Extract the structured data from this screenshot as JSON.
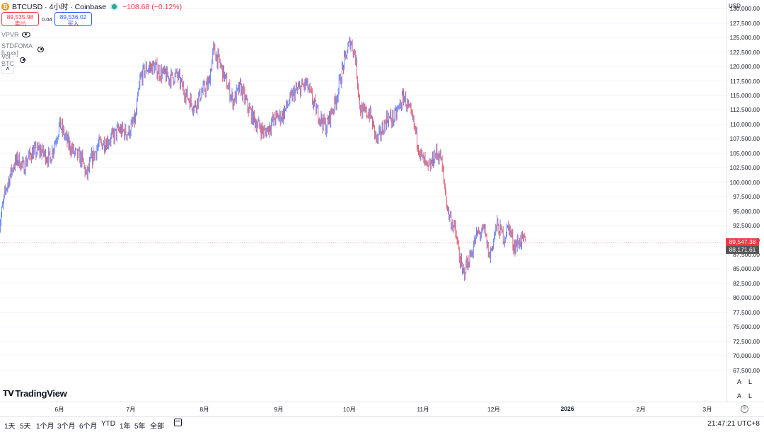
{
  "legend": {
    "symbol": "BTCUSD · 4小时 · Coinbase",
    "change": "−108.68 (−0.12%)",
    "sell_price": "89,535.98",
    "sell_label": "卖出",
    "spread": "0.04",
    "buy_price": "89,536.02",
    "buy_label": "买入",
    "indicators": [
      "VPVR",
      "STDFOMA [Loxx]",
      "Vol · BTC"
    ],
    "collapse_icon": "chevron-up-icon"
  },
  "price_axis": {
    "currency": "USD",
    "tags": {
      "last_price": "89,547.38",
      "last_color": "#f23645",
      "other_price": "88,171.61",
      "other_color": "#555555"
    }
  },
  "branding": {
    "logo_text": "TradingView"
  },
  "auto_log": {
    "a": "A",
    "l": "L"
  },
  "bottom_bar": {
    "ranges": [
      "1天",
      "5天",
      "1个月",
      "3个月",
      "6个月",
      "YTD",
      "1年",
      "5年",
      "全部"
    ],
    "clock": "21:47:21 UTC+8"
  },
  "colors": {
    "up": "#5b7cf5",
    "down": "#e0546a",
    "grid": "#f0f3fa"
  },
  "chart_data": {
    "type": "line",
    "title": "BTCUSD · 4小时 · Coinbase",
    "x_ticks": [
      "6月",
      "7月",
      "8月",
      "9月",
      "10月",
      "11月",
      "12月",
      "2026",
      "2月",
      "3月"
    ],
    "y_ticks": [
      "130,000.00",
      "127,500.00",
      "125,000.00",
      "122,500.00",
      "120,000.00",
      "117,500.00",
      "115,000.00",
      "112,500.00",
      "110,000.00",
      "107,500.00",
      "105,000.00",
      "102,500.00",
      "100,000.00",
      "97,500.00",
      "95,000.00",
      "92,500.00",
      "90,000.00",
      "87,500.00",
      "85,000.00",
      "82,500.00",
      "80,000.00",
      "77,500.00",
      "75,000.00",
      "72,500.00",
      "70,000.00",
      "67,500.00"
    ],
    "ylim": [
      65500,
      131500
    ],
    "series": [
      {
        "x": [
          "2025-05-15",
          "2025-05-18",
          "2025-05-21",
          "2025-05-23",
          "2025-05-25",
          "2025-05-28",
          "2025-06-01",
          "2025-06-05",
          "2025-06-09",
          "2025-06-12",
          "2025-06-15",
          "2025-06-18",
          "2025-06-20",
          "2025-06-22",
          "2025-06-25",
          "2025-06-28",
          "2025-07-01",
          "2025-07-03",
          "2025-07-07",
          "2025-07-10",
          "2025-07-12",
          "2025-07-14",
          "2025-07-17",
          "2025-07-20",
          "2025-07-24",
          "2025-07-27",
          "2025-07-31",
          "2025-08-03",
          "2025-08-06",
          "2025-08-09",
          "2025-08-11",
          "2025-08-14",
          "2025-08-16",
          "2025-08-19",
          "2025-08-22",
          "2025-08-25",
          "2025-08-28",
          "2025-09-01",
          "2025-09-05",
          "2025-09-08",
          "2025-09-13",
          "2025-09-18",
          "2025-09-22",
          "2025-09-26",
          "2025-09-30",
          "2025-10-03",
          "2025-10-06",
          "2025-10-08",
          "2025-10-10",
          "2025-10-11",
          "2025-10-14",
          "2025-10-17",
          "2025-10-21",
          "2025-10-24",
          "2025-10-28",
          "2025-11-01",
          "2025-11-04",
          "2025-11-07",
          "2025-11-10",
          "2025-11-12",
          "2025-11-15",
          "2025-11-18",
          "2025-11-21",
          "2025-11-24",
          "2025-11-27",
          "2025-11-30",
          "2025-12-02",
          "2025-12-05",
          "2025-12-08",
          "2025-12-10",
          "2025-12-12",
          "2025-12-15",
          "2025-12-17"
        ],
        "y": [
          92000,
          99000,
          103000,
          104000,
          102500,
          105000,
          105500,
          104000,
          110000,
          107000,
          105000,
          104000,
          101000,
          104000,
          106500,
          107000,
          108000,
          109000,
          108500,
          111000,
          118000,
          119500,
          120000,
          119000,
          118000,
          118500,
          115000,
          113000,
          115500,
          117000,
          123000,
          120000,
          117500,
          114000,
          116500,
          113000,
          110500,
          108500,
          111000,
          111500,
          115500,
          117000,
          112500,
          109500,
          114000,
          120000,
          124500,
          122000,
          113000,
          112000,
          112000,
          107000,
          111000,
          111000,
          115000,
          110000,
          104500,
          102000,
          105000,
          104500,
          95000,
          91500,
          84000,
          87000,
          91000,
          91500,
          87000,
          92500,
          90500,
          92500,
          89000,
          90000,
          89500
        ]
      }
    ],
    "annotations": [
      "89,547.38",
      "88,171.61"
    ],
    "grid": true
  }
}
